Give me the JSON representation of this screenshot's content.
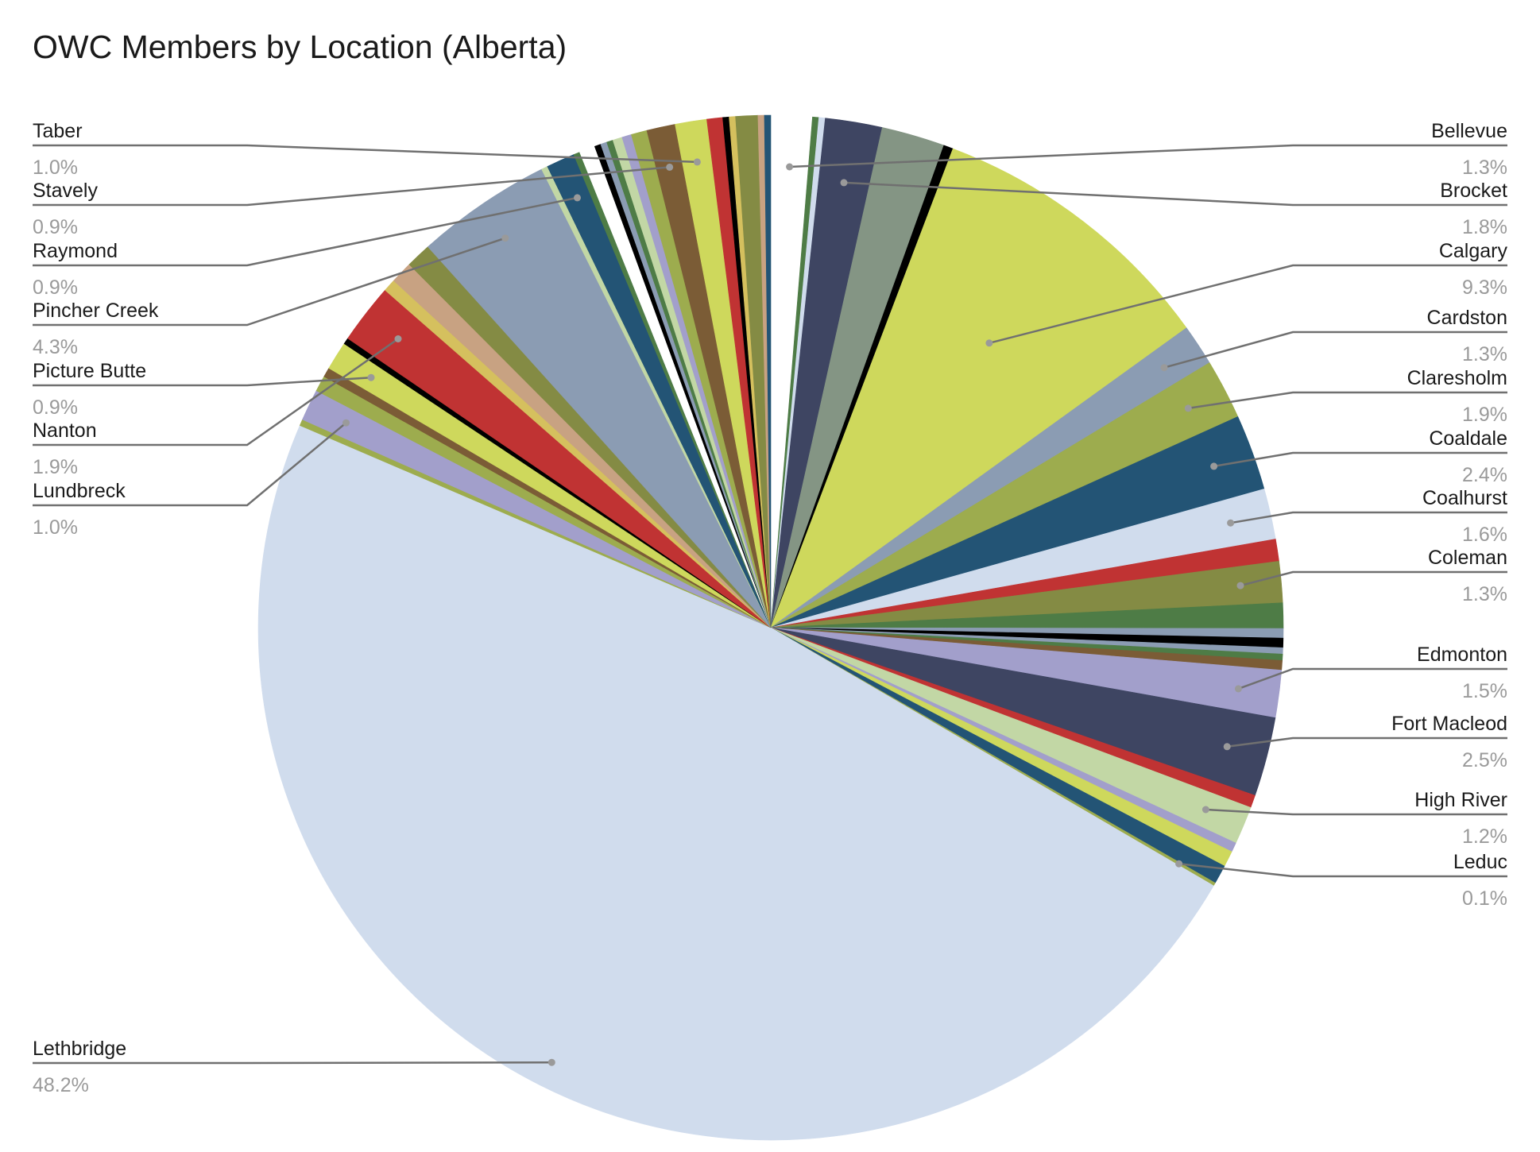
{
  "chart_data": {
    "type": "pie",
    "title": "OWC Members by Location (Alberta)",
    "legend": "none",
    "start_angle_deg": 0,
    "direction": "clockwise",
    "slices": [
      {
        "value": 1.3,
        "color": "#ffffff",
        "label": "Bellevue",
        "pct": "1.3%"
      },
      {
        "value": 0.2,
        "color": "#4e7c46"
      },
      {
        "value": 0.2,
        "color": "#d0dced"
      },
      {
        "value": 1.8,
        "color": "#3e4562",
        "label": "Brocket",
        "pct": "1.8%"
      },
      {
        "value": 2.0,
        "color": "#849584"
      },
      {
        "value": 0.3,
        "color": "#000000"
      },
      {
        "value": 9.3,
        "color": "#ced85c",
        "label": "Calgary",
        "pct": "9.3%"
      },
      {
        "value": 1.3,
        "color": "#8b9cb3",
        "label": "Cardston",
        "pct": "1.3%"
      },
      {
        "value": 1.9,
        "color": "#9dac4e",
        "label": "Claresholm",
        "pct": "1.9%"
      },
      {
        "value": 2.4,
        "color": "#235475",
        "label": "Coaldale",
        "pct": "2.4%"
      },
      {
        "value": 1.6,
        "color": "#d0dced",
        "label": "Coalhurst",
        "pct": "1.6%"
      },
      {
        "value": 0.7,
        "color": "#c03333"
      },
      {
        "value": 1.3,
        "color": "#848b44",
        "label": "Coleman",
        "pct": "1.3%"
      },
      {
        "value": 0.8,
        "color": "#4e7c46"
      },
      {
        "value": 0.3,
        "color": "#8b9cb3"
      },
      {
        "value": 0.3,
        "color": "#000000"
      },
      {
        "value": 0.2,
        "color": "#8b9cb3"
      },
      {
        "value": 0.2,
        "color": "#4e7c46"
      },
      {
        "value": 0.3,
        "color": "#7b5c36"
      },
      {
        "value": 1.5,
        "color": "#a29fcb",
        "label": "Edmonton",
        "pct": "1.5%"
      },
      {
        "value": 2.5,
        "color": "#3e4562",
        "label": "Fort Macleod",
        "pct": "2.5%"
      },
      {
        "value": 0.4,
        "color": "#c03333"
      },
      {
        "value": 1.2,
        "color": "#c2d7a5",
        "label": "High River",
        "pct": "1.2%"
      },
      {
        "value": 0.3,
        "color": "#a29fcb"
      },
      {
        "value": 0.5,
        "color": "#ced85c"
      },
      {
        "value": 0.6,
        "color": "#235475"
      },
      {
        "value": 0.1,
        "color": "#9dac4e",
        "label": "Leduc",
        "pct": "0.1%"
      },
      {
        "value": 48.2,
        "color": "#d0dced",
        "label": "Lethbridge",
        "pct": "48.2%"
      },
      {
        "value": 0.2,
        "color": "#9dac4e"
      },
      {
        "value": 1.0,
        "color": "#a29fcb",
        "label": "Lundbreck",
        "pct": "1.0%"
      },
      {
        "value": 0.5,
        "color": "#9dac4e"
      },
      {
        "value": 0.3,
        "color": "#7b5c36"
      },
      {
        "value": 0.9,
        "color": "#ced85c",
        "label": "Picture Butte",
        "pct": "0.9%"
      },
      {
        "value": 0.2,
        "color": "#000000"
      },
      {
        "value": 1.9,
        "color": "#c03333",
        "label": "Nanton",
        "pct": "1.9%"
      },
      {
        "value": 0.4,
        "color": "#d5c05e"
      },
      {
        "value": 0.7,
        "color": "#c8a282"
      },
      {
        "value": 0.8,
        "color": "#848b44"
      },
      {
        "value": 4.3,
        "color": "#8b9cb3",
        "label": "Pincher Creek",
        "pct": "4.3%"
      },
      {
        "value": 0.2,
        "color": "#c2d7a5"
      },
      {
        "value": 0.9,
        "color": "#235475",
        "label": "Raymond",
        "pct": "0.9%"
      },
      {
        "value": 0.2,
        "color": "#4e7c46"
      },
      {
        "value": 0.5,
        "color": "#ffffff"
      },
      {
        "value": 0.2,
        "color": "#000000"
      },
      {
        "value": 0.2,
        "color": "#8b9cb3"
      },
      {
        "value": 0.2,
        "color": "#4e7c46"
      },
      {
        "value": 0.3,
        "color": "#c2d7a5"
      },
      {
        "value": 0.3,
        "color": "#a29fcb"
      },
      {
        "value": 0.5,
        "color": "#9dac4e"
      },
      {
        "value": 0.9,
        "color": "#7b5c36",
        "label": "Stavely",
        "pct": "0.9%"
      },
      {
        "value": 1.0,
        "color": "#ced85c",
        "label": "Taber",
        "pct": "1.0%"
      },
      {
        "value": 0.5,
        "color": "#c03333"
      },
      {
        "value": 0.2,
        "color": "#000000"
      },
      {
        "value": 0.2,
        "color": "#d5c05e"
      },
      {
        "value": 0.7,
        "color": "#848b44"
      },
      {
        "value": 0.2,
        "color": "#c8a282"
      },
      {
        "value": 0.2,
        "color": "#235475"
      }
    ]
  }
}
